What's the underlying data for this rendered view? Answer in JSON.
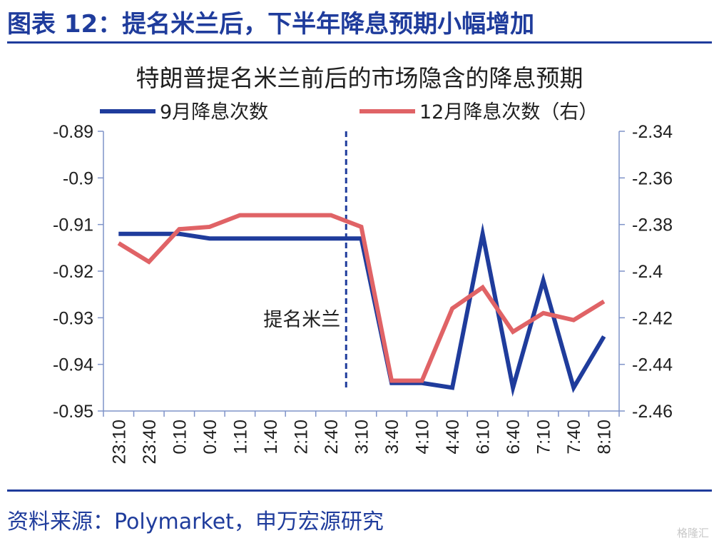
{
  "figure_title": "图表 12：提名米兰后，下半年降息预期小幅增加",
  "source": "资料来源：Polymarket，申万宏源研究",
  "watermark": "格隆汇",
  "chart_data": {
    "type": "line",
    "title": "特朗普提名米兰前后的市场隐含的降息预期",
    "categories": [
      "23:10",
      "23:40",
      "0:10",
      "0:40",
      "1:10",
      "1:40",
      "2:10",
      "2:40",
      "3:10",
      "3:40",
      "4:10",
      "4:40",
      "6:10",
      "6:40",
      "7:10",
      "7:40",
      "8:10"
    ],
    "series": [
      {
        "name": "9月降息次数",
        "axis": "left",
        "color": "#1f3c9c",
        "values": [
          -0.912,
          -0.912,
          -0.912,
          -0.913,
          -0.913,
          -0.913,
          -0.913,
          -0.913,
          -0.913,
          -0.944,
          -0.944,
          -0.945,
          -0.912,
          -0.945,
          -0.922,
          -0.945,
          -0.934
        ]
      },
      {
        "name": "12月降息次数（右）",
        "axis": "right",
        "color": "#e06366",
        "values": [
          -2.388,
          -2.396,
          -2.382,
          -2.381,
          -2.376,
          -2.376,
          -2.376,
          -2.376,
          -2.381,
          -2.447,
          -2.447,
          -2.416,
          -2.407,
          -2.426,
          -2.418,
          -2.421,
          -2.413
        ]
      }
    ],
    "y_left": {
      "min": -0.95,
      "max": -0.89,
      "ticks": [
        -0.89,
        -0.9,
        -0.91,
        -0.92,
        -0.93,
        -0.94,
        -0.95
      ],
      "tick_labels": [
        "-0.89",
        "-0.9",
        "-0.91",
        "-0.92",
        "-0.93",
        "-0.94",
        "-0.95"
      ]
    },
    "y_right": {
      "min": -2.46,
      "max": -2.34,
      "ticks": [
        -2.34,
        -2.36,
        -2.38,
        -2.4,
        -2.42,
        -2.44,
        -2.46
      ],
      "tick_labels": [
        "-2.34",
        "-2.36",
        "-2.38",
        "-2.4",
        "-2.42",
        "-2.44",
        "-2.46"
      ]
    },
    "annotation": {
      "label": "提名米兰",
      "at_category": "3:10",
      "style": "dashed vertical line"
    },
    "legend": "top",
    "grid": false
  }
}
